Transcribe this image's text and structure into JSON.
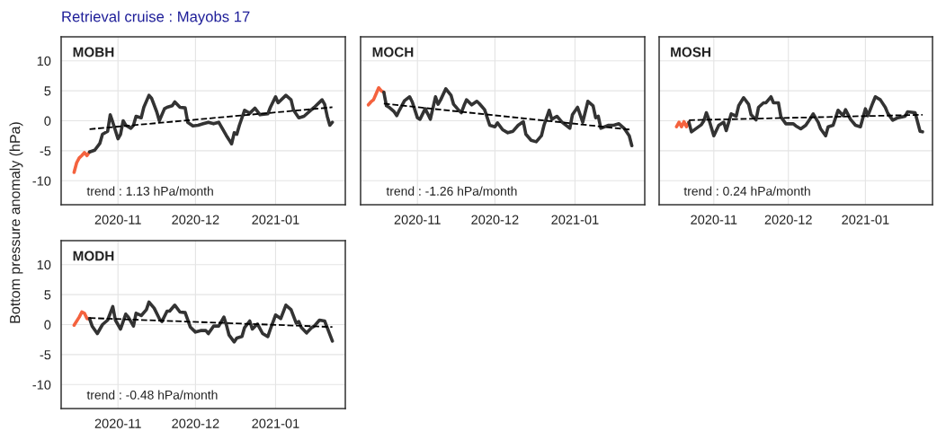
{
  "chart_data": [
    {
      "type": "line",
      "title": "MOBH",
      "subtitle": "Retrieval cruise : Mayobs 17",
      "ylabel": "Bottom pressure anomaly (hPa)",
      "xlim": [
        "2020-10-10",
        "2021-01-28"
      ],
      "xticks": [
        "2020-11",
        "2020-12",
        "2021-01"
      ],
      "ylim": [
        -14,
        14
      ],
      "yticks": [
        -10,
        -5,
        0,
        5,
        10
      ],
      "grid": true,
      "annotations": [
        "trend : 1.13 hPa/month"
      ],
      "series": [
        {
          "color": "#f4623e",
          "x": [
            "2020-10-15",
            "2020-10-16",
            "2020-10-17",
            "2020-10-18",
            "2020-10-19",
            "2020-10-20",
            "2020-10-21"
          ],
          "values": [
            -8.6,
            -7.0,
            -6.2,
            -5.8,
            -5.3,
            -5.8,
            -5.2
          ]
        },
        {
          "color": "#333333",
          "x": [
            "2020-10-21",
            "2020-10-23",
            "2020-10-25",
            "2020-10-26",
            "2020-10-28",
            "2020-10-29",
            "2020-10-30",
            "2020-11-01",
            "2020-11-02",
            "2020-11-03",
            "2020-11-04",
            "2020-11-06",
            "2020-11-07",
            "2020-11-08",
            "2020-11-10",
            "2020-11-11",
            "2020-11-13",
            "2020-11-14",
            "2020-11-16",
            "2020-11-17",
            "2020-11-19",
            "2020-11-20",
            "2020-11-22",
            "2020-11-23",
            "2020-11-25",
            "2020-11-27",
            "2020-11-28",
            "2020-11-30",
            "2020-12-02",
            "2020-12-04",
            "2020-12-06",
            "2020-12-08",
            "2020-12-10",
            "2020-12-11",
            "2020-12-13",
            "2020-12-15",
            "2020-12-16",
            "2020-12-17",
            "2020-12-18",
            "2020-12-20",
            "2020-12-22",
            "2020-12-24",
            "2020-12-26",
            "2020-12-29",
            "2020-12-30",
            "2021-01-01",
            "2021-01-02",
            "2021-01-05",
            "2021-01-07",
            "2021-01-08",
            "2021-01-10",
            "2021-01-12",
            "2021-01-14",
            "2021-01-16",
            "2021-01-19",
            "2021-01-20",
            "2021-01-21",
            "2021-01-22",
            "2021-01-23"
          ],
          "values": [
            -5.2,
            -4.9,
            -3.75,
            -2.25,
            -1.75,
            1.0,
            -0.25,
            -3.0,
            -2.25,
            0,
            -0.75,
            -1.25,
            -0.75,
            0.75,
            0.5,
            2.25,
            4.25,
            3.75,
            1.5,
            0,
            2.0,
            2.25,
            2.5,
            3.15,
            2.25,
            2.15,
            -0.25,
            -0.85,
            -0.75,
            -0.5,
            -0.25,
            -0.5,
            -0.25,
            -1.0,
            -2.5,
            -3.85,
            -2.0,
            -2.25,
            -0.75,
            1.75,
            1.25,
            2.1,
            1.0,
            1.15,
            2.25,
            4.0,
            3.0,
            4.25,
            3.5,
            1.75,
            0.5,
            0.75,
            1.5,
            2.25,
            3.5,
            2.75,
            0.75,
            -0.75,
            -0.25
          ]
        },
        {
          "type": "line",
          "line_style": "dashed",
          "color": "#000000",
          "x": [
            "2020-10-21",
            "2021-01-23"
          ],
          "values": [
            -1.4,
            2.25
          ]
        }
      ]
    },
    {
      "type": "line",
      "title": "MOCH",
      "xlim": [
        "2020-10-10",
        "2021-01-28"
      ],
      "xticks": [
        "2020-11",
        "2020-12",
        "2021-01"
      ],
      "ylim": [
        -14,
        14
      ],
      "yticks": [
        -10,
        -5,
        0,
        5,
        10
      ],
      "grid": true,
      "tick_labels": "x",
      "annotations": [
        "trend : -1.26 hPa/month"
      ],
      "series": [
        {
          "color": "#f4623e",
          "x": [
            "2020-10-13",
            "2020-10-14",
            "2020-10-15",
            "2020-10-16",
            "2020-10-17",
            "2020-10-18",
            "2020-10-19"
          ],
          "values": [
            2.65,
            3.15,
            3.5,
            4.5,
            5.5,
            5.0,
            4.75
          ]
        },
        {
          "color": "#333333",
          "x": [
            "2020-10-19",
            "2020-10-20",
            "2020-10-21",
            "2020-10-23",
            "2020-10-24",
            "2020-10-25",
            "2020-10-27",
            "2020-10-29",
            "2020-10-30",
            "2020-11-01",
            "2020-11-02",
            "2020-11-04",
            "2020-11-05",
            "2020-11-06",
            "2020-11-08",
            "2020-11-09",
            "2020-11-10",
            "2020-11-12",
            "2020-11-14",
            "2020-11-15",
            "2020-11-17",
            "2020-11-18",
            "2020-11-19",
            "2020-11-20",
            "2020-11-22",
            "2020-11-24",
            "2020-11-25",
            "2020-11-27",
            "2020-11-29",
            "2020-12-01",
            "2020-12-02",
            "2020-12-04",
            "2020-12-06",
            "2020-12-08",
            "2020-12-10",
            "2020-12-12",
            "2020-12-13",
            "2020-12-15",
            "2020-12-17",
            "2020-12-19",
            "2020-12-20",
            "2020-12-22",
            "2020-12-23",
            "2020-12-25",
            "2020-12-27",
            "2020-12-30",
            "2020-12-31",
            "2021-01-02",
            "2021-01-04",
            "2021-01-06",
            "2021-01-08",
            "2021-01-09",
            "2021-01-10",
            "2021-01-11",
            "2021-01-14",
            "2021-01-16",
            "2021-01-18",
            "2021-01-20",
            "2021-01-22",
            "2021-01-23"
          ],
          "values": [
            4.75,
            2.5,
            2.25,
            1.5,
            0.85,
            1.75,
            3.35,
            4.0,
            3.15,
            0.5,
            0.25,
            2.0,
            1.15,
            0.25,
            4.0,
            2.75,
            3.5,
            5.35,
            4.25,
            2.75,
            1.75,
            1.35,
            2.5,
            3.5,
            2.65,
            3.25,
            2.85,
            1.85,
            -0.75,
            -1.0,
            -0.35,
            -1.5,
            -2.0,
            -1.75,
            -0.75,
            -0.15,
            -2.25,
            -3.25,
            -3.5,
            -2.5,
            -0.75,
            1.75,
            0.25,
            0.75,
            -0.25,
            -1.25,
            1.0,
            2.25,
            -0.25,
            3.25,
            2.5,
            0.5,
            0.75,
            -1.25,
            -0.75,
            -0.75,
            -0.5,
            -1.25,
            -2.5,
            -4.15
          ]
        },
        {
          "type": "line",
          "line_style": "dashed",
          "color": "#000000",
          "x": [
            "2020-10-19",
            "2021-01-23"
          ],
          "values": [
            2.85,
            -1.5
          ]
        }
      ]
    },
    {
      "type": "line",
      "title": "MOSH",
      "xlim": [
        "2020-10-10",
        "2021-01-28"
      ],
      "xticks": [
        "2020-11",
        "2020-12",
        "2021-01"
      ],
      "ylim": [
        -14,
        14
      ],
      "yticks": [
        -10,
        -5,
        0,
        5,
        10
      ],
      "grid": true,
      "tick_labels": "x",
      "annotations": [
        "trend : 0.24 hPa/month"
      ],
      "series": [
        {
          "color": "#f4623e",
          "x": [
            "2020-10-17",
            "2020-10-18",
            "2020-10-19",
            "2020-10-20",
            "2020-10-21",
            "2020-10-22"
          ],
          "values": [
            -1.0,
            -0.25,
            -1.0,
            -0.15,
            -1.0,
            -0.25
          ]
        },
        {
          "color": "#333333",
          "x": [
            "2020-10-22",
            "2020-10-23",
            "2020-10-25",
            "2020-10-27",
            "2020-10-28",
            "2020-10-29",
            "2020-10-30",
            "2020-11-01",
            "2020-11-03",
            "2020-11-05",
            "2020-11-06",
            "2020-11-08",
            "2020-11-10",
            "2020-11-11",
            "2020-11-13",
            "2020-11-15",
            "2020-11-16",
            "2020-11-18",
            "2020-11-19",
            "2020-11-21",
            "2020-11-22",
            "2020-11-24",
            "2020-11-25",
            "2020-11-27",
            "2020-11-28",
            "2020-11-30",
            "2020-12-03",
            "2020-12-04",
            "2020-12-06",
            "2020-12-08",
            "2020-12-10",
            "2020-12-11",
            "2020-12-13",
            "2020-12-14",
            "2020-12-16",
            "2020-12-17",
            "2020-12-19",
            "2020-12-21",
            "2020-12-23",
            "2020-12-24",
            "2020-12-26",
            "2020-12-28",
            "2020-12-30",
            "2021-01-01",
            "2021-01-02",
            "2021-01-04",
            "2021-01-05",
            "2021-01-07",
            "2021-01-09",
            "2021-01-10",
            "2021-01-12",
            "2021-01-14",
            "2021-01-17",
            "2021-01-18",
            "2021-01-21",
            "2021-01-23",
            "2021-01-24"
          ],
          "values": [
            -0.25,
            -1.85,
            -1.25,
            -0.65,
            0,
            1.35,
            0.25,
            -2.5,
            -0.75,
            -0.25,
            -1.65,
            1.15,
            0.75,
            2.5,
            3.85,
            2.75,
            1.0,
            0.15,
            2.25,
            3.0,
            3.0,
            4.0,
            3.0,
            3.0,
            0.65,
            -0.5,
            -0.5,
            -0.85,
            -1.35,
            -0.75,
            0.5,
            1.15,
            -0.25,
            -1.35,
            -2.5,
            -1.0,
            -0.75,
            1.75,
            0.85,
            1.85,
            0.25,
            -0.75,
            -1.0,
            2.0,
            0.85,
            3.0,
            4.0,
            3.5,
            2.25,
            1.25,
            0.1,
            0.5,
            0.75,
            1.5,
            1.35,
            -1.75,
            -1.85
          ]
        },
        {
          "type": "line",
          "line_style": "dashed",
          "color": "#000000",
          "x": [
            "2020-10-22",
            "2021-01-24"
          ],
          "values": [
            0.1,
            1.0
          ]
        }
      ]
    },
    {
      "type": "line",
      "title": "MODH",
      "xlim": [
        "2020-10-10",
        "2021-01-28"
      ],
      "xticks": [
        "2020-11",
        "2020-12",
        "2021-01"
      ],
      "ylim": [
        -14,
        14
      ],
      "yticks": [
        -10,
        -5,
        0,
        5,
        10
      ],
      "grid": true,
      "annotations": [
        "trend : -0.48 hPa/month"
      ],
      "series": [
        {
          "color": "#f4623e",
          "x": [
            "2020-10-15",
            "2020-10-17",
            "2020-10-18",
            "2020-10-19",
            "2020-10-20",
            "2020-10-21"
          ],
          "values": [
            -0.1,
            1.25,
            2.1,
            1.9,
            1.0,
            1.0
          ]
        },
        {
          "color": "#333333",
          "x": [
            "2020-10-21",
            "2020-10-22",
            "2020-10-24",
            "2020-10-26",
            "2020-10-28",
            "2020-10-30",
            "2020-10-31",
            "2020-11-02",
            "2020-11-04",
            "2020-11-05",
            "2020-11-07",
            "2020-11-08",
            "2020-11-10",
            "2020-11-12",
            "2020-11-13",
            "2020-11-15",
            "2020-11-17",
            "2020-11-18",
            "2020-11-20",
            "2020-11-21",
            "2020-11-23",
            "2020-11-25",
            "2020-11-27",
            "2020-11-29",
            "2020-12-01",
            "2020-12-03",
            "2020-12-05",
            "2020-12-06",
            "2020-12-08",
            "2020-12-10",
            "2020-12-12",
            "2020-12-13",
            "2020-12-14",
            "2020-12-16",
            "2020-12-17",
            "2020-12-19",
            "2020-12-20",
            "2020-12-22",
            "2020-12-23",
            "2020-12-25",
            "2020-12-27",
            "2020-12-29",
            "2020-12-30",
            "2021-01-01",
            "2021-01-03",
            "2021-01-05",
            "2021-01-07",
            "2021-01-09",
            "2021-01-10",
            "2021-01-11",
            "2021-01-13",
            "2021-01-15",
            "2021-01-16",
            "2021-01-18",
            "2021-01-20",
            "2021-01-21",
            "2021-01-23"
          ],
          "values": [
            1.0,
            -0.25,
            -1.5,
            0,
            0.75,
            3.0,
            0.75,
            -0.75,
            1.75,
            1.25,
            -0.25,
            1.9,
            1.5,
            2.5,
            3.75,
            2.75,
            1.0,
            0.5,
            2.25,
            2.25,
            3.25,
            2.1,
            2.0,
            -0.4,
            -1.25,
            -1.0,
            -1.0,
            -1.5,
            -0.25,
            -0.25,
            1.25,
            -0.1,
            -1.75,
            -2.9,
            -2.25,
            -2.0,
            -0.5,
            0.6,
            -0.75,
            0.1,
            -1.5,
            -2.0,
            -0.75,
            1.6,
            1.0,
            3.25,
            2.5,
            0.25,
            0.5,
            -0.5,
            -1.4,
            -0.5,
            -0.25,
            0.75,
            0.6,
            -0.5,
            -2.75
          ]
        },
        {
          "type": "line",
          "line_style": "dashed",
          "color": "#000000",
          "x": [
            "2020-10-21",
            "2021-01-23"
          ],
          "values": [
            1.1,
            -0.4
          ]
        }
      ]
    }
  ]
}
